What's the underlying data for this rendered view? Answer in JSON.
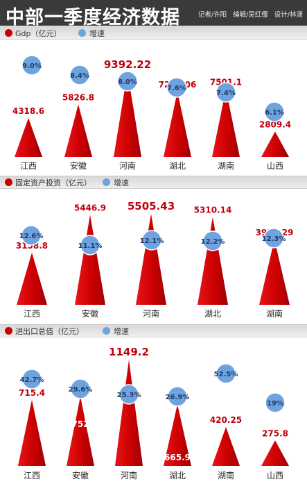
{
  "header": {
    "title": "中部一季度经济数据",
    "reporter": "记者/许阳",
    "editor": "编辑/吴红缨",
    "designer": "设计/林潇"
  },
  "colors": {
    "value": "#cc0000",
    "growth": "#6fa3e0",
    "value_text": "#c0000b",
    "growth_text": "#1f3a66"
  },
  "chart_data": [
    {
      "type": "bar",
      "legend": {
        "value_label": "Gdp（亿元）",
        "growth_label": "增速"
      },
      "series": [
        {
          "name": "Gdp（亿元）",
          "values": [
            4318.6,
            5826.8,
            9392.22,
            7254.06,
            7501.1,
            2809.4
          ]
        },
        {
          "name": "增速",
          "values": [
            "9.0%",
            "8.4%",
            "8.0%",
            "7.6%",
            "7.4%",
            "6.1%"
          ]
        }
      ],
      "categories": [
        "江西",
        "安徽",
        "河南",
        "湖北",
        "湖南",
        "山西"
      ]
    },
    {
      "type": "bar",
      "legend": {
        "value_label": "固定资产投资（亿元）",
        "growth_label": "增速"
      },
      "series": [
        {
          "name": "固定资产投资（亿元）",
          "values": [
            3158.8,
            5446.9,
            5505.43,
            5310.14,
            3950.29
          ]
        },
        {
          "name": "增速",
          "values": [
            "12.6%",
            "11.1%",
            "12.1%",
            "12.2%",
            "12.3%"
          ]
        }
      ],
      "categories": [
        "江西",
        "安徽",
        "河南",
        "湖北",
        "湖南"
      ]
    },
    {
      "type": "bar",
      "legend": {
        "value_label": "进出口总值（亿元）",
        "growth_label": "增速"
      },
      "series": [
        {
          "name": "进出口总值（亿元）",
          "values": [
            715.4,
            752,
            1149.2,
            665.9,
            420.25,
            275.8
          ]
        },
        {
          "name": "增速",
          "values": [
            "42.7%",
            "29.6%",
            "25.3%",
            "26.9%",
            "52.5%",
            "19%"
          ]
        }
      ],
      "categories": [
        "江西",
        "安徽",
        "河南",
        "湖北",
        "湖南",
        "山西"
      ]
    }
  ]
}
